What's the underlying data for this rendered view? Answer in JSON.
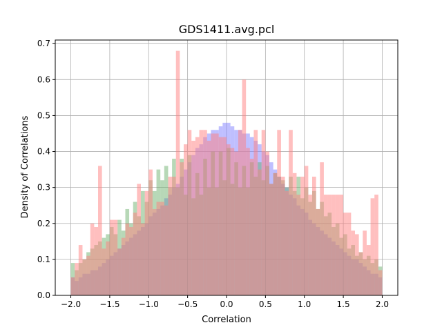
{
  "chart_data": {
    "type": "bar",
    "title": "GDS1411.avg.pcl",
    "xlabel": "Correlation",
    "ylabel": "Density of Correlations",
    "xlim": [
      -2.2,
      2.2
    ],
    "ylim": [
      0.0,
      0.71
    ],
    "x_ticks": [
      -2.0,
      -1.5,
      -1.0,
      -0.5,
      0.0,
      0.5,
      1.0,
      1.5,
      2.0
    ],
    "y_ticks": [
      0.0,
      0.1,
      0.2,
      0.3,
      0.4,
      0.5,
      0.6,
      0.7
    ],
    "x_tick_labels": [
      "−2.0",
      "−1.5",
      "−1.0",
      "−0.5",
      "0.0",
      "0.5",
      "1.0",
      "1.5",
      "2.0"
    ],
    "y_tick_labels": [
      "0.0",
      "0.1",
      "0.2",
      "0.3",
      "0.4",
      "0.5",
      "0.6",
      "0.7"
    ],
    "grid": true,
    "bin_range": [
      -2.0,
      2.0
    ],
    "bin_count": 80,
    "series": [
      {
        "color": "#8080ff",
        "opacity": 0.5,
        "values": [
          0.05,
          0.04,
          0.05,
          0.06,
          0.06,
          0.07,
          0.07,
          0.08,
          0.09,
          0.1,
          0.11,
          0.12,
          0.13,
          0.14,
          0.15,
          0.16,
          0.17,
          0.18,
          0.19,
          0.2,
          0.22,
          0.23,
          0.24,
          0.25,
          0.27,
          0.28,
          0.3,
          0.31,
          0.33,
          0.35,
          0.37,
          0.39,
          0.41,
          0.42,
          0.44,
          0.45,
          0.46,
          0.46,
          0.47,
          0.48,
          0.48,
          0.47,
          0.46,
          0.46,
          0.45,
          0.45,
          0.44,
          0.43,
          0.42,
          0.4,
          0.39,
          0.37,
          0.35,
          0.33,
          0.31,
          0.3,
          0.28,
          0.27,
          0.25,
          0.24,
          0.23,
          0.21,
          0.2,
          0.19,
          0.18,
          0.17,
          0.16,
          0.15,
          0.14,
          0.13,
          0.12,
          0.11,
          0.1,
          0.1,
          0.09,
          0.08,
          0.07,
          0.06,
          0.06,
          0.05
        ]
      },
      {
        "color": "#60a860",
        "opacity": 0.45,
        "values": [
          0.09,
          0.07,
          0.09,
          0.1,
          0.12,
          0.13,
          0.14,
          0.15,
          0.16,
          0.17,
          0.19,
          0.17,
          0.21,
          0.18,
          0.24,
          0.2,
          0.26,
          0.22,
          0.29,
          0.26,
          0.32,
          0.29,
          0.35,
          0.32,
          0.36,
          0.3,
          0.38,
          0.3,
          0.38,
          0.28,
          0.39,
          0.27,
          0.34,
          0.28,
          0.38,
          0.3,
          0.4,
          0.3,
          0.4,
          0.32,
          0.41,
          0.31,
          0.37,
          0.3,
          0.36,
          0.3,
          0.37,
          0.33,
          0.37,
          0.32,
          0.36,
          0.31,
          0.34,
          0.33,
          0.32,
          0.3,
          0.33,
          0.29,
          0.33,
          0.27,
          0.3,
          0.26,
          0.29,
          0.24,
          0.26,
          0.22,
          0.23,
          0.19,
          0.2,
          0.16,
          0.17,
          0.13,
          0.14,
          0.11,
          0.12,
          0.1,
          0.11,
          0.09,
          0.1,
          0.08
        ]
      },
      {
        "color": "#ff8080",
        "opacity": 0.5,
        "values": [
          0.05,
          0.09,
          0.14,
          0.1,
          0.11,
          0.2,
          0.19,
          0.36,
          0.13,
          0.15,
          0.21,
          0.21,
          0.13,
          0.16,
          0.2,
          0.19,
          0.23,
          0.31,
          0.2,
          0.29,
          0.35,
          0.24,
          0.26,
          0.26,
          0.25,
          0.33,
          0.33,
          0.68,
          0.37,
          0.42,
          0.46,
          0.43,
          0.44,
          0.46,
          0.46,
          0.43,
          0.45,
          0.45,
          0.44,
          0.44,
          0.42,
          0.41,
          0.4,
          0.46,
          0.6,
          0.41,
          0.38,
          0.46,
          0.35,
          0.46,
          0.4,
          0.31,
          0.34,
          0.46,
          0.33,
          0.29,
          0.46,
          0.34,
          0.28,
          0.33,
          0.36,
          0.28,
          0.33,
          0.24,
          0.37,
          0.28,
          0.28,
          0.28,
          0.28,
          0.28,
          0.23,
          0.23,
          0.18,
          0.17,
          0.12,
          0.18,
          0.14,
          0.27,
          0.28,
          0.07
        ]
      }
    ]
  }
}
